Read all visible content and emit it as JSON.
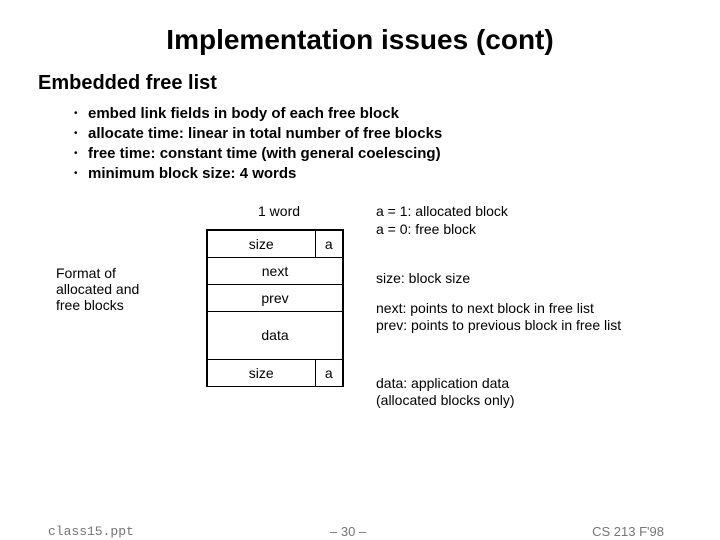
{
  "title": "Implementation issues (cont)",
  "subtitle": "Embedded free list",
  "bullets": [
    "embed link fields in body of each free block",
    "allocate time: linear in total number of free blocks",
    "free time: constant time (with general coelescing)",
    "minimum block size: 4 words"
  ],
  "diagram": {
    "one_word": "1 word",
    "left_caption_l1": "Format of",
    "left_caption_l2": "allocated and",
    "left_caption_l3": "free blocks",
    "rows": {
      "size_top": "size",
      "a_top": "a",
      "next": "next",
      "prev": "prev",
      "data": "data",
      "size_bot": "size",
      "a_bot": "a"
    }
  },
  "notes": {
    "a1": "a = 1: allocated block",
    "a0": "a = 0: free block",
    "size": "size: block size",
    "next": "next: points to next block in free list",
    "prev": "prev: points to previous block in free list",
    "data_l1": "data: application data",
    "data_l2": "(allocated blocks only)"
  },
  "footer": {
    "left": "class15.ppt",
    "mid": "– 30 –",
    "right": "CS 213 F'98"
  }
}
